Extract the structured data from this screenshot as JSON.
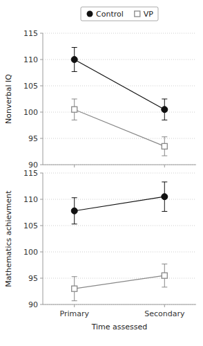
{
  "chart_data": [
    {
      "type": "line",
      "ylabel": "Nonverbal IQ",
      "categories": [
        "Primary",
        "Secondary"
      ],
      "ylim": [
        90,
        115
      ],
      "yticks": [
        90,
        95,
        100,
        105,
        110,
        115
      ],
      "grid": true,
      "legend": "top",
      "tick_labels": "y",
      "series": [
        {
          "name": "Control",
          "color": "#111111",
          "marker": "circle",
          "values": [
            110.0,
            100.5
          ],
          "error": [
            2.3,
            2.0
          ]
        },
        {
          "name": "VP",
          "color": "#888888",
          "marker": "square",
          "values": [
            100.5,
            93.5
          ],
          "error": [
            2.0,
            1.8
          ]
        }
      ]
    },
    {
      "type": "line",
      "ylabel": "Mathematics achievment",
      "xlabel": "Time assessed",
      "categories": [
        "Primary",
        "Secondary"
      ],
      "ylim": [
        90,
        115
      ],
      "yticks": [
        90,
        95,
        100,
        105,
        110,
        115
      ],
      "grid": true,
      "series": [
        {
          "color": "#111111",
          "marker": "circle",
          "values": [
            107.8,
            110.5
          ],
          "error": [
            2.5,
            2.8
          ]
        },
        {
          "color": "#888888",
          "marker": "square",
          "values": [
            93.0,
            95.5
          ],
          "error": [
            2.3,
            2.2
          ]
        }
      ]
    }
  ]
}
